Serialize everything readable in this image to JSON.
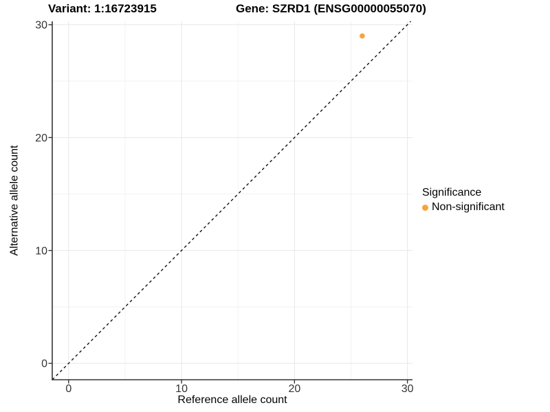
{
  "titles": {
    "variant": "Variant: 1:16723915",
    "gene": "Gene: SZRD1 (ENSG00000055070)"
  },
  "chart_data": {
    "type": "scatter",
    "xlabel": "Reference allele count",
    "ylabel": "Alternative allele count",
    "xlim": [
      -1.45,
      30.45
    ],
    "ylim": [
      -1.45,
      30.3
    ],
    "x_ticks": [
      0,
      10,
      20,
      30
    ],
    "y_ticks": [
      0,
      10,
      20,
      30
    ],
    "x_minor_ticks": [
      5,
      15,
      25
    ],
    "y_minor_ticks": [
      5,
      15,
      25
    ],
    "grid": "major and minor, light gray on white",
    "points": [
      {
        "x": 26,
        "y": 29,
        "series": "Non-significant"
      }
    ],
    "identity_line": {
      "type": "dashed",
      "from": "y = x",
      "color": "#000000"
    },
    "legend": {
      "title": "Significance",
      "position": "right",
      "items": [
        {
          "label": "Non-significant",
          "color": "#F8A33C"
        }
      ]
    },
    "style": {
      "point_color": "#F8A33C",
      "axis_color": "#333333",
      "tick_label_color": "#333333",
      "grid_major_color": "#e7e7e7",
      "grid_minor_color": "#f2f2f2",
      "background": "#ffffff"
    }
  }
}
